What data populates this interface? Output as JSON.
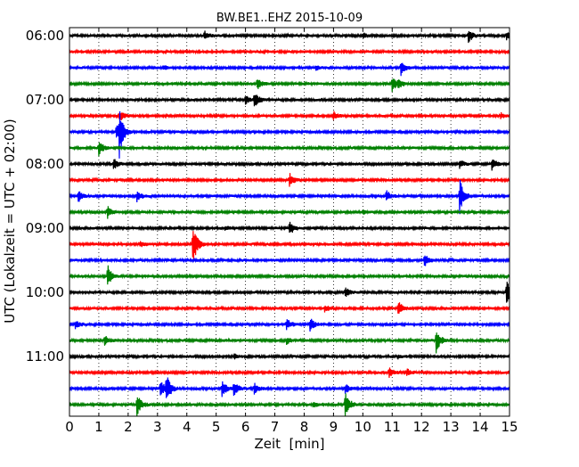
{
  "chart_data": {
    "type": "line",
    "title": "BW.BE1..EHZ 2015-10-09",
    "xlabel": "Zeit  [min]",
    "ylabel": "UTC (Lokalzeit = UTC + 02:00)",
    "xlim": [
      0,
      15
    ],
    "x_ticks": [
      "0",
      "1",
      "2",
      "3",
      "4",
      "5",
      "6",
      "7",
      "8",
      "9",
      "10",
      "11",
      "12",
      "13",
      "14",
      "15"
    ],
    "y_ticks": [
      {
        "label": "06:00",
        "row": 0
      },
      {
        "label": "07:00",
        "row": 4
      },
      {
        "label": "08:00",
        "row": 8
      },
      {
        "label": "09:00",
        "row": 12
      },
      {
        "label": "10:00",
        "row": 16
      },
      {
        "label": "11:00",
        "row": 20
      }
    ],
    "grid": "vertical-dotted",
    "trace_colors": [
      "#000000",
      "#ff0000",
      "#0000ff",
      "#008000"
    ],
    "traces": [
      {
        "start": "06:00",
        "events": [
          [
            4.6,
            0.25
          ],
          [
            10.0,
            0.15
          ],
          [
            13.6,
            0.45
          ],
          [
            14.9,
            0.2
          ]
        ]
      },
      {
        "start": "06:15",
        "events": []
      },
      {
        "start": "06:30",
        "events": [
          [
            3.2,
            0.12
          ],
          [
            8.4,
            0.15
          ],
          [
            11.3,
            0.45
          ]
        ]
      },
      {
        "start": "06:45",
        "events": [
          [
            6.4,
            0.35
          ],
          [
            11.0,
            0.45
          ],
          [
            11.2,
            0.3
          ]
        ]
      },
      {
        "start": "07:00",
        "events": [
          [
            6.3,
            0.5
          ],
          [
            6.0,
            0.25
          ]
        ]
      },
      {
        "start": "07:15",
        "events": [
          [
            1.7,
            0.35
          ],
          [
            9.0,
            0.25
          ],
          [
            14.7,
            0.15
          ]
        ]
      },
      {
        "start": "07:30",
        "events": [
          [
            1.7,
            1.4
          ],
          [
            1.6,
            0.5
          ]
        ]
      },
      {
        "start": "07:45",
        "events": [
          [
            1.0,
            0.45
          ]
        ]
      },
      {
        "start": "08:00",
        "events": [
          [
            1.5,
            0.35
          ],
          [
            13.3,
            0.25
          ],
          [
            14.4,
            0.35
          ]
        ]
      },
      {
        "start": "08:15",
        "events": [
          [
            7.5,
            0.45
          ]
        ]
      },
      {
        "start": "08:30",
        "events": [
          [
            0.3,
            0.35
          ],
          [
            2.3,
            0.35
          ],
          [
            10.8,
            0.35
          ],
          [
            13.3,
            1.15
          ]
        ]
      },
      {
        "start": "08:45",
        "events": [
          [
            1.3,
            0.35
          ],
          [
            10.0,
            0.1
          ]
        ]
      },
      {
        "start": "09:00",
        "events": [
          [
            7.5,
            0.45
          ],
          [
            5.3,
            0.1
          ]
        ]
      },
      {
        "start": "09:15",
        "events": [
          [
            4.2,
            1.4
          ],
          [
            2.4,
            0.2
          ]
        ]
      },
      {
        "start": "09:30",
        "events": [
          [
            12.1,
            0.4
          ]
        ]
      },
      {
        "start": "09:45",
        "events": [
          [
            1.3,
            0.7
          ]
        ]
      },
      {
        "start": "10:00",
        "events": [
          [
            9.4,
            0.3
          ],
          [
            14.9,
            0.75
          ]
        ]
      },
      {
        "start": "10:15",
        "events": [
          [
            11.2,
            0.5
          ],
          [
            8.7,
            0.2
          ]
        ]
      },
      {
        "start": "10:30",
        "events": [
          [
            0.2,
            0.25
          ],
          [
            7.4,
            0.35
          ],
          [
            8.2,
            0.4
          ]
        ]
      },
      {
        "start": "10:45",
        "events": [
          [
            12.5,
            0.75
          ],
          [
            1.2,
            0.3
          ],
          [
            7.4,
            0.2
          ]
        ]
      },
      {
        "start": "11:00",
        "events": [
          [
            5.6,
            0.15
          ],
          [
            11.2,
            0.1
          ]
        ]
      },
      {
        "start": "11:15",
        "events": [
          [
            10.9,
            0.3
          ],
          [
            11.5,
            0.25
          ]
        ]
      },
      {
        "start": "11:30",
        "events": [
          [
            3.1,
            0.55
          ],
          [
            3.3,
            0.9
          ],
          [
            5.2,
            0.55
          ],
          [
            5.6,
            0.45
          ],
          [
            6.3,
            0.35
          ],
          [
            9.4,
            0.3
          ]
        ]
      },
      {
        "start": "11:45",
        "events": [
          [
            2.3,
            0.7
          ],
          [
            9.4,
            0.85
          ],
          [
            8.3,
            0.2
          ]
        ]
      }
    ]
  }
}
